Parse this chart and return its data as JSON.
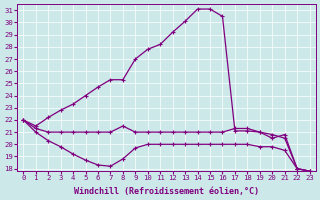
{
  "xlabel": "Windchill (Refroidissement éolien,°C)",
  "background_color": "#cce8e8",
  "line_color": "#800080",
  "grid_color": "#ffffff",
  "xlim": [
    -0.5,
    23.5
  ],
  "ylim": [
    17.8,
    31.5
  ],
  "xticks": [
    0,
    1,
    2,
    3,
    4,
    5,
    6,
    7,
    8,
    9,
    10,
    11,
    12,
    13,
    14,
    15,
    16,
    17,
    18,
    19,
    20,
    21,
    22,
    23
  ],
  "yticks": [
    18,
    19,
    20,
    21,
    22,
    23,
    24,
    25,
    26,
    27,
    28,
    29,
    30,
    31
  ],
  "curve_top_x": [
    0,
    1,
    2,
    3,
    4,
    5,
    6,
    7,
    8,
    9,
    10,
    11,
    12,
    13,
    14,
    15,
    16,
    17,
    18,
    19,
    20,
    21,
    22,
    23
  ],
  "curve_top_y": [
    22.0,
    21.5,
    22.2,
    22.8,
    23.3,
    24.0,
    24.7,
    25.3,
    25.3,
    27.0,
    27.8,
    28.2,
    29.2,
    30.1,
    31.1,
    31.1,
    30.5,
    21.1,
    21.1,
    21.0,
    20.8,
    20.5,
    18.0,
    17.8
  ],
  "curve_mid_x": [
    0,
    1,
    2,
    3,
    4,
    5,
    6,
    7,
    8,
    9,
    10,
    11,
    12,
    13,
    14,
    15,
    16,
    17,
    18,
    19,
    20,
    21,
    22,
    23
  ],
  "curve_mid_y": [
    22.0,
    21.3,
    21.0,
    21.0,
    21.0,
    21.0,
    21.0,
    21.0,
    21.5,
    21.0,
    21.0,
    21.0,
    21.0,
    21.0,
    21.0,
    21.0,
    21.0,
    21.3,
    21.3,
    21.0,
    20.5,
    20.8,
    18.0,
    17.8
  ],
  "curve_bot_x": [
    0,
    1,
    2,
    3,
    4,
    5,
    6,
    7,
    8,
    9,
    10,
    11,
    12,
    13,
    14,
    15,
    16,
    17,
    18,
    19,
    20,
    21,
    22,
    23
  ],
  "curve_bot_y": [
    22.0,
    21.0,
    20.3,
    19.8,
    19.2,
    18.7,
    18.3,
    18.2,
    18.8,
    19.7,
    20.0,
    20.0,
    20.0,
    20.0,
    20.0,
    20.0,
    20.0,
    20.0,
    20.0,
    19.8,
    19.8,
    19.5,
    18.0,
    17.8
  ],
  "marker": "+",
  "markersize": 3.5,
  "linewidth": 0.9,
  "tick_fontsize": 5.2,
  "xlabel_fontsize": 6.0
}
